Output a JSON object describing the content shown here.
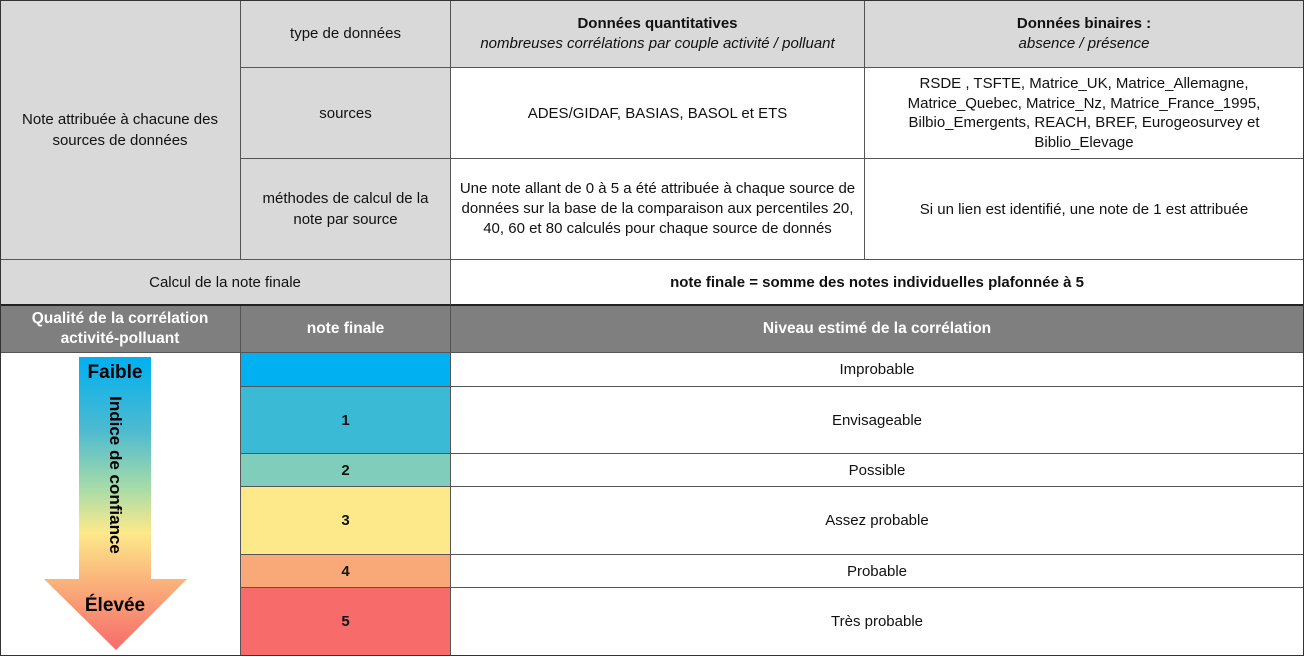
{
  "top": {
    "row_label": "Note attribuée à chacune des sources de données",
    "type_label": "type de données",
    "sources_label": "sources",
    "methods_label": "méthodes de calcul de la note par source",
    "quant_title": "Données quantitatives",
    "quant_subtitle": "nombreuses corrélations par couple activité / polluant",
    "bin_title": "Données binaires :",
    "bin_subtitle": "absence / présence",
    "quant_sources": "ADES/GIDAF, BASIAS, BASOL et ETS",
    "bin_sources": "RSDE , TSFTE, Matrice_UK, Matrice_Allemagne, Matrice_Quebec, Matrice_Nz, Matrice_France_1995, Bilbio_Emergents, REACH, BREF, Eurogeosurvey et Biblio_Elevage",
    "quant_method": "Une note allant de 0 à 5 a été attribuée à chaque source de données sur la base de la comparaison aux percentiles 20, 40, 60 et 80 calculés pour chaque source de donnés",
    "bin_method": "Si un lien est identifié, une note de 1 est attribuée",
    "final_label": "Calcul de la note finale",
    "final_formula": "note finale = somme des notes individuelles plafonnée à 5"
  },
  "bottom": {
    "headers": [
      "Qualité de la corrélation activité-polluant",
      "note finale",
      "Niveau estimé de la corrélation"
    ],
    "arrow": {
      "top": "Faible",
      "middle": "Indice de confiance",
      "bottom": "Élevée"
    },
    "rows": [
      {
        "note": "",
        "level": "Improbable",
        "color": "#00b0f0"
      },
      {
        "note": "1",
        "level": "Envisageable",
        "color": "#3bbad6"
      },
      {
        "note": "2",
        "level": "Possible",
        "color": "#80cdbb"
      },
      {
        "note": "3",
        "level": "Assez probable",
        "color": "#fee98a"
      },
      {
        "note": "4",
        "level": "Probable",
        "color": "#f9a878"
      },
      {
        "note": "5",
        "level": "Très probable",
        "color": "#f76b6b"
      }
    ]
  }
}
